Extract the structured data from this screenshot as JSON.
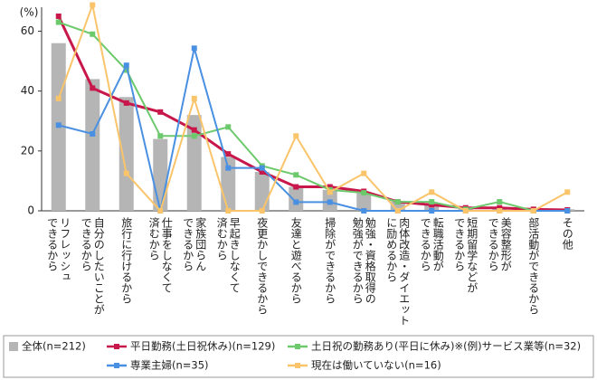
{
  "chart_data": {
    "type": "bar-line",
    "y_unit_label": "(%)",
    "categories": [
      "リフレッシュ\nできるから",
      "自分のしたいことが\nできるから",
      "旅行に行けるから",
      "仕事をしなくて\n済むから",
      "家族団らん\nできるから",
      "早起きしなくて\n済むから",
      "夜更かしできるから",
      "友達と遊べるから",
      "掃除ができるから",
      "勉強・資格取得の\n勉強ができるから",
      "肉体改造・ダイエット\nに励めるから",
      "転職活動が\nできるから",
      "短期留学などが\nできるから",
      "美容整形が\nできるから",
      "部活動ができるから",
      "その他"
    ],
    "series": [
      {
        "name": "全体(n=212)",
        "kind": "bar",
        "color": "#b5b5b5",
        "values": [
          56,
          44,
          38,
          24,
          32,
          18,
          13,
          8,
          7,
          6,
          3,
          2,
          1,
          1,
          0.5,
          0.5
        ]
      },
      {
        "name": "平日勤務(土日祝休み)(n=129)",
        "kind": "line",
        "color": "#c8174a",
        "values": [
          65,
          41,
          36,
          33,
          27,
          19,
          13,
          8,
          8,
          6.5,
          3,
          2,
          1,
          1,
          0.5,
          0.3
        ]
      },
      {
        "name": "土日祝の勤務あり(平日に休み)※(例)サービス業等(n=32)",
        "kind": "line",
        "color": "#6cc96c",
        "values": [
          63,
          59,
          47,
          25,
          25,
          28,
          15,
          12,
          7,
          6,
          3,
          3,
          0.5,
          3,
          0,
          0
        ]
      },
      {
        "name": "専業主婦(n=35)",
        "kind": "line",
        "color": "#4a90e2",
        "values": [
          28.6,
          25.7,
          48.6,
          0,
          54.3,
          14.3,
          14.3,
          2.9,
          2.9,
          0,
          0,
          0,
          0,
          0,
          0,
          0
        ]
      },
      {
        "name": "現在は働いていない(n=16)",
        "kind": "line",
        "color": "#f9c46a",
        "values": [
          37.5,
          68.75,
          12.5,
          0,
          37.5,
          0,
          0,
          25,
          6.25,
          12.5,
          0,
          6.25,
          0,
          0,
          0,
          6.25
        ]
      }
    ],
    "ylim": [
      0,
      68
    ],
    "yticks": [
      0,
      20,
      40,
      60
    ],
    "grid": false
  }
}
